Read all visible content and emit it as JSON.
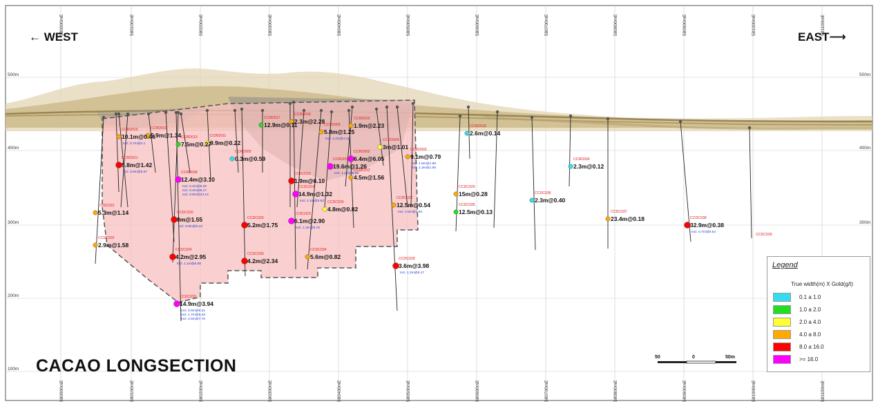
{
  "title": "CACAO LONGSECTION",
  "directions": {
    "west": "← WEST",
    "east": "EAST⟶"
  },
  "eastings": [
    "580000mE",
    "580100mE",
    "580200mE",
    "580300mE",
    "580400mE",
    "580500mE",
    "580600mE",
    "580700mE",
    "580800mE",
    "580900mE",
    "581000mE",
    "581100mE"
  ],
  "elevations": [
    "500m",
    "400m",
    "300m",
    "200m",
    "100m"
  ],
  "legend": {
    "title": "Legend",
    "subtitle": "True width(m) X Gold(g/t)",
    "items": [
      {
        "label": "0.1 a 1.0",
        "color": "#33ddee"
      },
      {
        "label": "1.0 a 2.0",
        "color": "#22dd22"
      },
      {
        "label": "2.0 a 4.0",
        "color": "#ffff33"
      },
      {
        "label": "4.0 a 8.0",
        "color": "#ffaa00"
      },
      {
        "label": "8.0 a 16.0",
        "color": "#ff0000"
      },
      {
        "label": ">= 16.0",
        "color": "#ff00ff"
      }
    ]
  },
  "scale": {
    "left": "50",
    "mid": "0",
    "right": "50m"
  },
  "intercepts": [
    {
      "hole": "CCRD015",
      "text": "10.1m@0.46",
      "incl": "Incl. 0.7m@2.1",
      "color": "#ffaa00"
    },
    {
      "hole": "CCRD021",
      "text": "5.8m@1.42",
      "incl": "Incl. 0.8m@5.67",
      "color": "#ff0000"
    },
    {
      "hole": "CCDC031",
      "text": "5.3m@1.14",
      "incl": "",
      "color": "#ffaa00"
    },
    {
      "hole": "CCDC032",
      "text": "2.9m@1.58",
      "incl": "",
      "color": "#ffaa00"
    },
    {
      "hole": "CCRD019",
      "text": "5.9m@1.34",
      "incl": "",
      "color": "#ffaa00"
    },
    {
      "hole": "CCRD013",
      "text": "7.5m@0.27",
      "incl": "",
      "color": "#22dd22"
    },
    {
      "hole": "CCRD011",
      "text": "9.9m@0.22",
      "incl": "",
      "color": "#ffff33"
    },
    {
      "hole": "CCRD008",
      "text": "12.4m@3.10",
      "incl": "Incl. 0.4m@5.20 | Incl. 0.3m@8.17 | Incl. 0.8m@34.13",
      "color": "#ff00ff"
    },
    {
      "hole": "CCDC020",
      "text": "8m@1.55",
      "incl": "Incl. 0.8m@5.12",
      "color": "#ff0000"
    },
    {
      "hole": "CCDC024",
      "text": "4.2m@2.95",
      "incl": "Incl. 1.1m@6.06",
      "color": "#ff0000"
    },
    {
      "hole": "CCDC033",
      "text": "14.9m@3.94",
      "incl": "Incl. 0.9m@6.31 | Incl. 1.7m@5.29 | Incl. 2.6m@7.76",
      "color": "#ff00ff"
    },
    {
      "hole": "CCRD005",
      "text": "0.3m@0.59",
      "incl": "",
      "color": "#33ddee"
    },
    {
      "hole": "CCDC029",
      "text": "5.2m@1.75",
      "incl": "",
      "color": "#ff0000"
    },
    {
      "hole": "CCDC030",
      "text": "4.2m@2.34",
      "incl": "",
      "color": "#ff0000"
    },
    {
      "hole": "CCRD017",
      "text": "12.9m@0.11",
      "incl": "",
      "color": "#22dd22"
    },
    {
      "hole": "CCRD018",
      "text": "2.3m@2.28",
      "incl": "",
      "color": "#ffaa00"
    },
    {
      "hole": "CCRD009",
      "text": "5.8m@1.25",
      "incl": "Incl. 1.2m@4.11",
      "color": "#ffaa00"
    },
    {
      "hole": "CCRD016",
      "text": "1.9m@2.23",
      "incl": "",
      "color": "#ffaa00"
    },
    {
      "hole": "CCRD004",
      "text": "3m@1.01",
      "incl": "",
      "color": "#ffff33"
    },
    {
      "hole": "CCRD002",
      "text": "6.4m@6.05",
      "incl": "",
      "color": "#ff00ff"
    },
    {
      "hole": "CCRD007",
      "text": "19.6m@1.26",
      "incl": "Incl. 1.1m@6.95",
      "color": "#ff00ff"
    },
    {
      "hole": "CCDC012",
      "text": "4.5m@1.56",
      "incl": "",
      "color": "#ffaa00"
    },
    {
      "hole": "CCRD010",
      "text": "1.9m@6.10",
      "incl": "",
      "color": "#ff0000"
    },
    {
      "hole": "CCDC014",
      "text": "14.9m@1.32",
      "incl": "Incl. 2.1m@5.92",
      "color": "#ff00ff"
    },
    {
      "hole": "CCDC026",
      "text": "4.8m@0.82",
      "incl": "",
      "color": "#ffff33"
    },
    {
      "hole": "CCDC023",
      "text": "6.1m@2.90",
      "incl": "Incl. 1.3m@8.76",
      "color": "#ff00ff"
    },
    {
      "hole": "CCDC034",
      "text": "5.6m@0.82",
      "incl": "",
      "color": "#ffaa00"
    },
    {
      "hole": "CCRD003",
      "text": "9.1m@0.79",
      "incl": "Incl. 1.8m@1.88 | Incl. 1.3m@1.86",
      "color": "#ffaa00"
    },
    {
      "hole": "CCDC027",
      "text": "12.5m@0.54",
      "incl": "Incl. 2.5m@1.93",
      "color": "#ffaa00"
    },
    {
      "hole": "CCDC028",
      "text": "3.6m@3.98",
      "incl": "Incl. 1.2m@8.17",
      "color": "#ff0000"
    },
    {
      "hole": "CCRD018",
      "text": "2.6m@0.14",
      "incl": "",
      "color": "#33ddee"
    },
    {
      "hole": "CCDC025",
      "text": "15m@0.28",
      "incl": "",
      "color": "#ffaa00"
    },
    {
      "hole": "CCDC035",
      "text": "12.5m@0.13",
      "incl": "",
      "color": "#22dd22"
    },
    {
      "hole": "CCDC036",
      "text": "2.3m@0.40",
      "incl": "",
      "color": "#33ddee"
    },
    {
      "hole": "CCRD006",
      "text": "2.3m@0.12",
      "incl": "",
      "color": "#33ddee"
    },
    {
      "hole": "CCDC037",
      "text": "23.4m@0.18",
      "incl": "",
      "color": "#ffaa00"
    },
    {
      "hole": "CCDC038",
      "text": "32.9m@0.38",
      "incl": "Incl. 0.7m@8.64",
      "color": "#ff0000"
    },
    {
      "hole": "CCDC039",
      "text": "",
      "incl": "",
      "color": "#ff0000"
    }
  ]
}
